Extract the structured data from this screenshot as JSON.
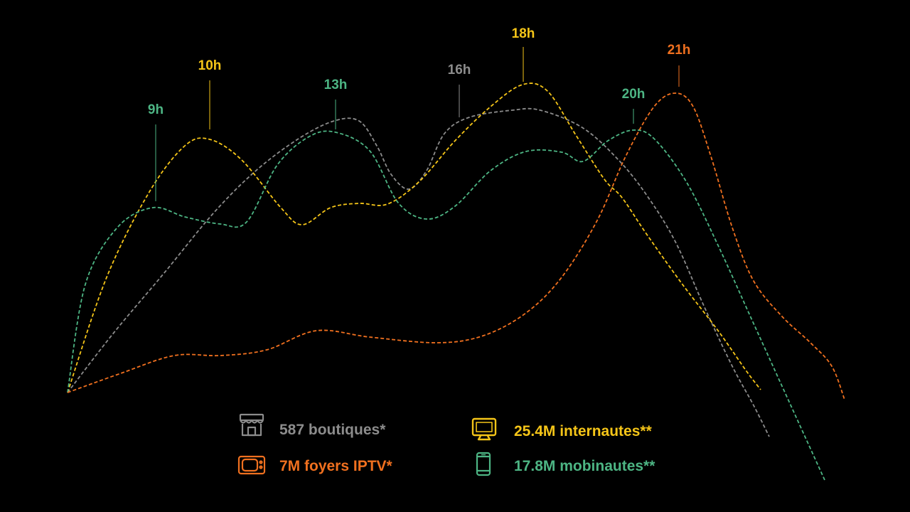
{
  "chart_data": {
    "type": "line",
    "series": [
      {
        "key": "boutiques",
        "color": "#8c8c8c",
        "legend": "587 boutiques*",
        "icon": "store-icon",
        "peaks": [
          {
            "label": "16h"
          }
        ],
        "points": [
          [
            95,
            552
          ],
          [
            160,
            468
          ],
          [
            230,
            385
          ],
          [
            300,
            300
          ],
          [
            360,
            240
          ],
          [
            420,
            195
          ],
          [
            470,
            170
          ],
          [
            505,
            170
          ],
          [
            530,
            205
          ],
          [
            550,
            245
          ],
          [
            575,
            266
          ],
          [
            600,
            240
          ],
          [
            625,
            188
          ],
          [
            660,
            165
          ],
          [
            720,
            155
          ],
          [
            760,
            155
          ],
          [
            820,
            180
          ],
          [
            870,
            225
          ],
          [
            910,
            275
          ],
          [
            950,
            340
          ],
          [
            990,
            430
          ],
          [
            1030,
            515
          ],
          [
            1060,
            570
          ],
          [
            1082,
            614
          ]
        ]
      },
      {
        "key": "internautes",
        "color": "#f5c518",
        "legend": "25.4M internautes**",
        "icon": "monitor-icon",
        "peaks": [
          {
            "label": "10h"
          },
          {
            "label": "18h"
          }
        ],
        "points": [
          [
            95,
            552
          ],
          [
            150,
            390
          ],
          [
            210,
            270
          ],
          [
            260,
            205
          ],
          [
            295,
            196
          ],
          [
            340,
            225
          ],
          [
            395,
            292
          ],
          [
            425,
            316
          ],
          [
            465,
            292
          ],
          [
            505,
            286
          ],
          [
            545,
            287
          ],
          [
            590,
            255
          ],
          [
            640,
            198
          ],
          [
            690,
            150
          ],
          [
            735,
            119
          ],
          [
            770,
            128
          ],
          [
            810,
            190
          ],
          [
            850,
            252
          ],
          [
            875,
            278
          ],
          [
            910,
            330
          ],
          [
            960,
            400
          ],
          [
            1010,
            465
          ],
          [
            1050,
            522
          ],
          [
            1070,
            548
          ]
        ]
      },
      {
        "key": "mobinautes",
        "color": "#4db584",
        "legend": "17.8M mobinautes**",
        "icon": "smartphone-icon",
        "peaks": [
          {
            "label": "9h"
          },
          {
            "label": "13h"
          },
          {
            "label": "20h"
          }
        ],
        "points": [
          [
            95,
            552
          ],
          [
            120,
            400
          ],
          [
            165,
            320
          ],
          [
            215,
            292
          ],
          [
            260,
            305
          ],
          [
            310,
            315
          ],
          [
            347,
            312
          ],
          [
            390,
            232
          ],
          [
            435,
            192
          ],
          [
            472,
            186
          ],
          [
            520,
            212
          ],
          [
            560,
            285
          ],
          [
            600,
            308
          ],
          [
            640,
            290
          ],
          [
            690,
            240
          ],
          [
            740,
            213
          ],
          [
            790,
            214
          ],
          [
            820,
            227
          ],
          [
            855,
            198
          ],
          [
            890,
            183
          ],
          [
            920,
            195
          ],
          [
            965,
            255
          ],
          [
            1010,
            345
          ],
          [
            1060,
            455
          ],
          [
            1110,
            565
          ],
          [
            1160,
            675
          ]
        ]
      },
      {
        "key": "iptv",
        "color": "#f0701f",
        "legend": "7M foyers IPTV*",
        "icon": "tv-icon",
        "peaks": [
          {
            "label": "21h"
          }
        ],
        "points": [
          [
            95,
            552
          ],
          [
            170,
            525
          ],
          [
            245,
            500
          ],
          [
            310,
            500
          ],
          [
            375,
            492
          ],
          [
            445,
            465
          ],
          [
            520,
            474
          ],
          [
            615,
            482
          ],
          [
            680,
            472
          ],
          [
            740,
            440
          ],
          [
            790,
            390
          ],
          [
            840,
            310
          ],
          [
            880,
            220
          ],
          [
            920,
            150
          ],
          [
            950,
            131
          ],
          [
            975,
            150
          ],
          [
            1000,
            220
          ],
          [
            1030,
            320
          ],
          [
            1060,
            395
          ],
          [
            1100,
            445
          ],
          [
            1140,
            482
          ],
          [
            1170,
            515
          ],
          [
            1188,
            562
          ]
        ]
      }
    ]
  }
}
